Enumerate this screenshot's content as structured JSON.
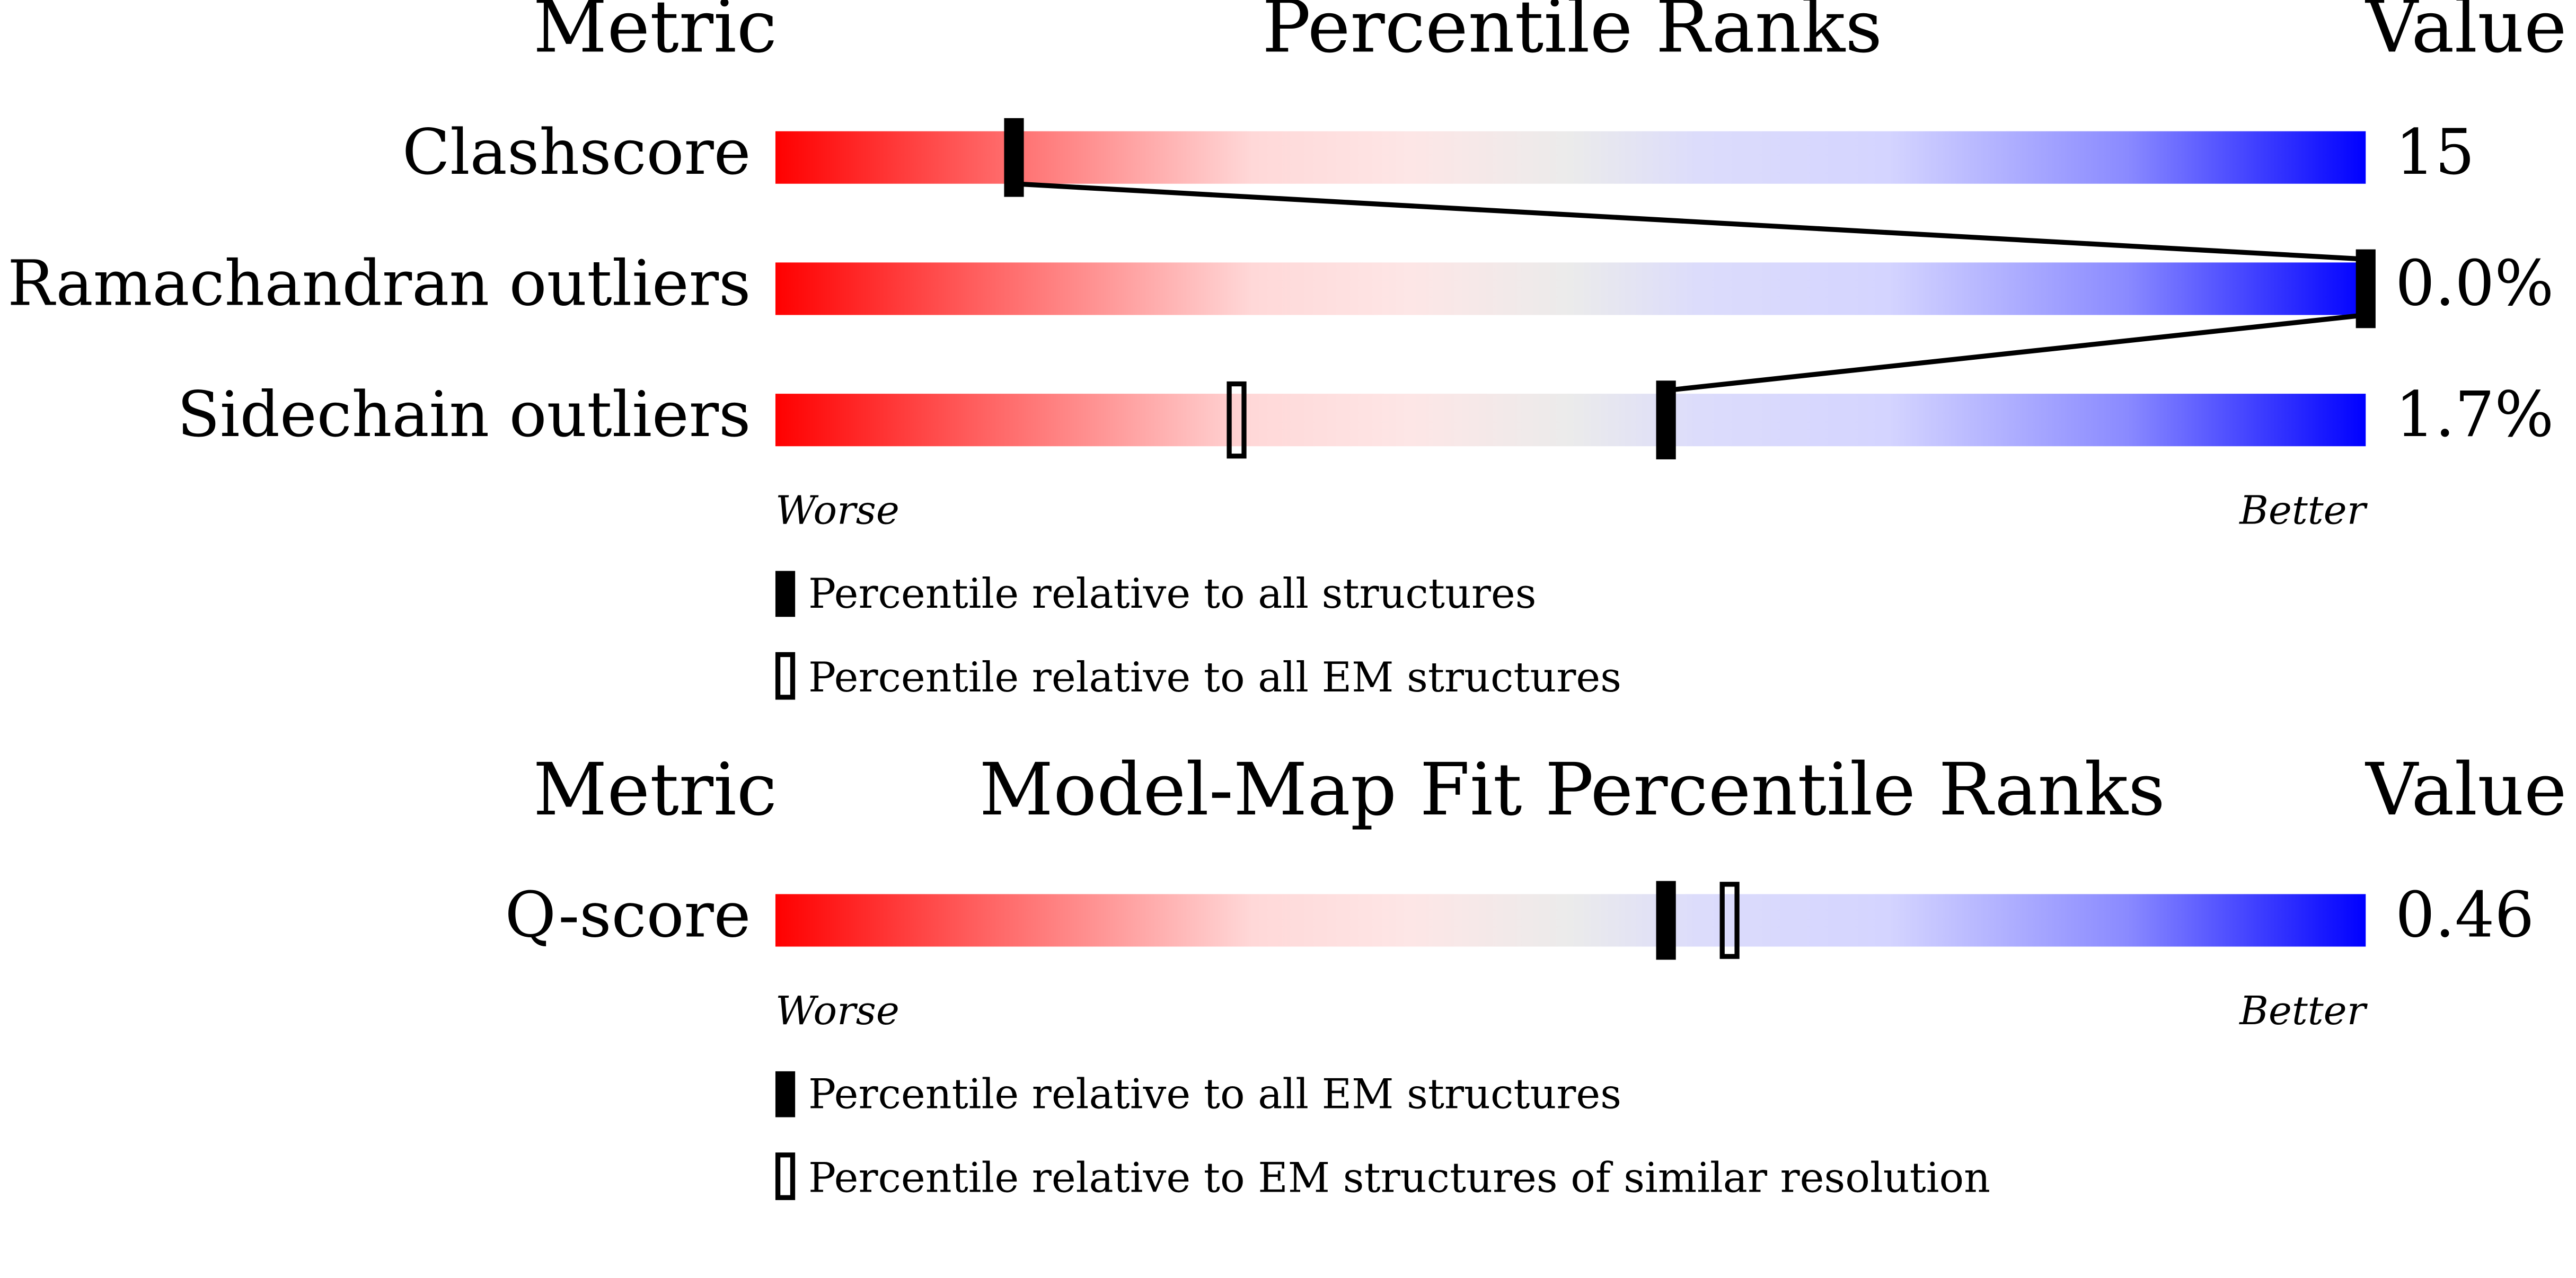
{
  "panels": [
    {
      "header": {
        "metric": "Metric",
        "title": "Percentile Ranks",
        "value": "Value"
      },
      "xlim": [
        0,
        100
      ],
      "scale_labels": {
        "low": "Worse",
        "high": "Better"
      },
      "rows": [
        {
          "metric": "Clashscore",
          "value": "15",
          "percentile_all": 15,
          "percentile_sub": null
        },
        {
          "metric": "Ramachandran outliers",
          "value": "0.0%",
          "percentile_all": 100,
          "percentile_sub": null
        },
        {
          "metric": "Sidechain outliers",
          "value": "1.7%",
          "percentile_all": 56,
          "percentile_sub": 29
        }
      ],
      "legend": {
        "filled": "Percentile relative to all structures",
        "hollow": "Percentile relative to all EM structures"
      },
      "connect": true
    },
    {
      "header": {
        "metric": "Metric",
        "title": "Model-Map Fit Percentile Ranks",
        "value": "Value"
      },
      "xlim": [
        0,
        100
      ],
      "scale_labels": {
        "low": "Worse",
        "high": "Better"
      },
      "rows": [
        {
          "metric": "Q-score",
          "value": "0.46",
          "percentile_all": 56,
          "percentile_sub": 60
        }
      ],
      "legend": {
        "filled": "Percentile relative to all EM structures",
        "hollow": "Percentile relative to EM structures of similar resolution"
      },
      "connect": false
    }
  ]
}
